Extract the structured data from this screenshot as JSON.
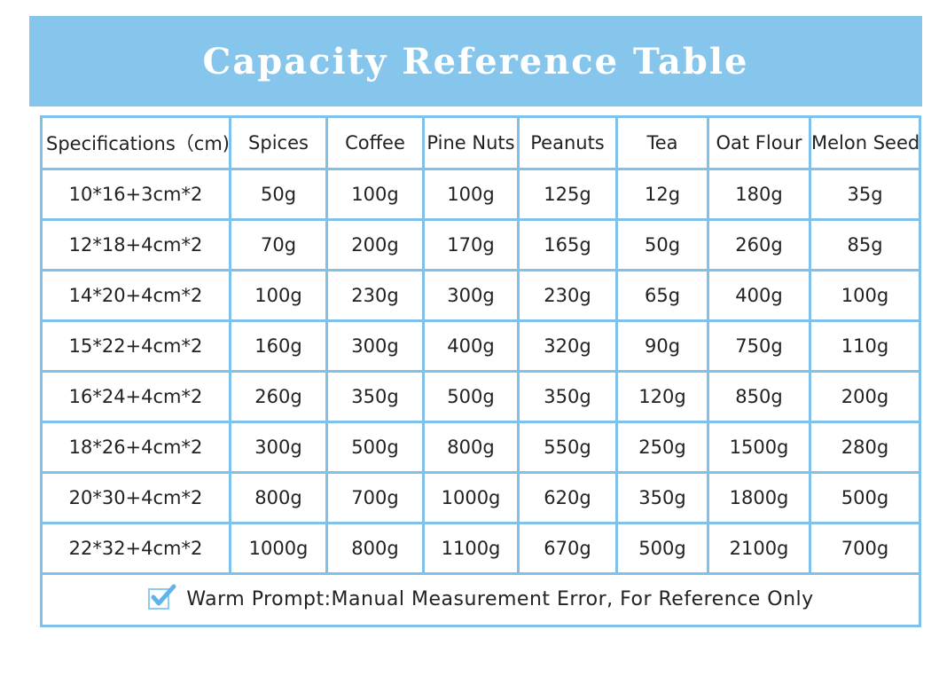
{
  "title": "Capacity Reference Table",
  "colors": {
    "accent": "#87c6ec",
    "border": "#7fc1e9"
  },
  "columns": [
    "Specifications（cm)",
    "Spices",
    "Coffee",
    "Pine Nuts",
    "Peanuts",
    "Tea",
    "Oat Flour",
    "Melon Seed"
  ],
  "rows": [
    [
      "10*16+3cm*2",
      "50g",
      "100g",
      "100g",
      "125g",
      "12g",
      "180g",
      "35g"
    ],
    [
      "12*18+4cm*2",
      "70g",
      "200g",
      "170g",
      "165g",
      "50g",
      "260g",
      "85g"
    ],
    [
      "14*20+4cm*2",
      "100g",
      "230g",
      "300g",
      "230g",
      "65g",
      "400g",
      "100g"
    ],
    [
      "15*22+4cm*2",
      "160g",
      "300g",
      "400g",
      "320g",
      "90g",
      "750g",
      "110g"
    ],
    [
      "16*24+4cm*2",
      "260g",
      "350g",
      "500g",
      "350g",
      "120g",
      "850g",
      "200g"
    ],
    [
      "18*26+4cm*2",
      "300g",
      "500g",
      "800g",
      "550g",
      "250g",
      "1500g",
      "280g"
    ],
    [
      "20*30+4cm*2",
      "800g",
      "700g",
      "1000g",
      "620g",
      "350g",
      "1800g",
      "500g"
    ],
    [
      "22*32+4cm*2",
      "1000g",
      "800g",
      "1100g",
      "670g",
      "500g",
      "2100g",
      "700g"
    ]
  ],
  "footer": {
    "icon": "checkbox-checked-icon",
    "text": "Warm Prompt:Manual Measurement Error, For Reference Only"
  }
}
